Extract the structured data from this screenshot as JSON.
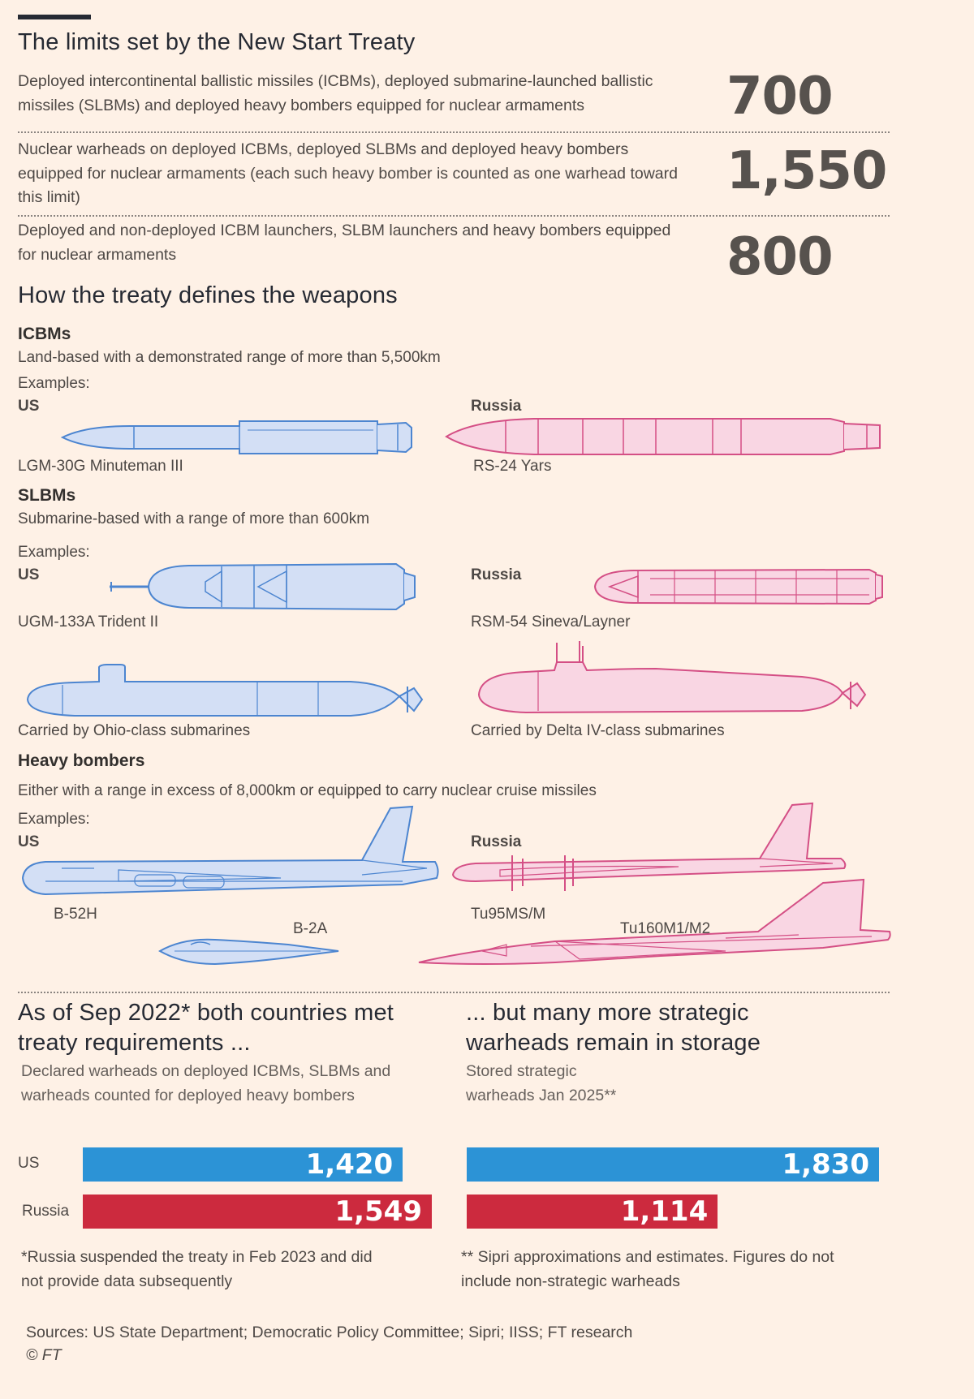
{
  "limits": {
    "title": "The limits set by the New Start Treaty",
    "rows": [
      {
        "text": "Deployed intercontinental ballistic missiles (ICBMs), deployed submarine-launched ballistic missiles (SLBMs) and deployed heavy bombers equipped for nuclear armaments",
        "value": "700"
      },
      {
        "text": "Nuclear warheads on deployed ICBMs, deployed SLBMs and deployed heavy bombers equipped for nuclear armaments (each such heavy bomber is counted as one warhead toward this limit)",
        "value": "1,550"
      },
      {
        "text": "Deployed and non-deployed ICBM launchers, SLBM launchers and heavy bombers equipped for nuclear armaments",
        "value": "800"
      }
    ]
  },
  "defs": {
    "title": "How the treaty defines the weapons",
    "examples_label": "Examples:",
    "us_label": "US",
    "russia_label": "Russia",
    "icbm": {
      "heading": "ICBMs",
      "desc": "Land-based with a demonstrated range of more than 5,500km",
      "us_name": "LGM-30G Minuteman III",
      "ru_name": "RS-24 Yars"
    },
    "slbm": {
      "heading": "SLBMs",
      "desc": "Submarine-based with a range of more than 600km",
      "us_name": "UGM-133A Trident II",
      "ru_name": "RSM-54 Sineva/Layner",
      "us_carrier": "Carried by Ohio-class submarines",
      "ru_carrier": "Carried by Delta IV-class submarines"
    },
    "bomber": {
      "heading": "Heavy bombers",
      "desc": "Either with a range in excess of 8,000km or equipped to carry nuclear cruise missiles",
      "us1": "B-52H",
      "us2": "B-2A",
      "ru1": "Tu95MS/M",
      "ru2": "Tu160M1/M2"
    }
  },
  "colors": {
    "us": "#2c93d6",
    "russia": "#cc2a3e",
    "us_art_fill": "#d3dff5",
    "us_art_stroke": "#4c85d0",
    "ru_art_fill": "#f9d6e3",
    "ru_art_stroke": "#d44f85"
  },
  "icons": {
    "us_icbm": "minuteman-missile-icon",
    "ru_icbm": "yars-missile-icon",
    "us_slbm": "trident-missile-icon",
    "ru_slbm": "sineva-missile-icon",
    "us_sub": "ohio-submarine-icon",
    "ru_sub": "delta-submarine-icon",
    "b52": "b52-bomber-icon",
    "b2": "b2-bomber-icon",
    "tu95": "tu95-bomber-icon",
    "tu160": "tu160-bomber-icon"
  },
  "left_chart": {
    "title": "As of Sep 2022* both countries met treaty requirements ...",
    "subtitle": "Declared warheads on deployed ICBMs, SLBMs and warheads counted for deployed heavy bombers",
    "note": "*Russia suspended the treaty in Feb 2023 and did not provide data subsequently"
  },
  "right_chart": {
    "title": "... but many more strategic warheads remain in storage",
    "subtitle": "Stored strategic warheads Jan 2025**",
    "note": "** Sipri approximations and estimates. Figures do not include non-strategic warheads"
  },
  "chart_data": [
    {
      "type": "bar",
      "title": "As of Sep 2022* both countries met treaty requirements ...",
      "subtitle": "Declared warheads on deployed ICBMs, SLBMs and warheads counted for deployed heavy bombers",
      "categories": [
        "US",
        "Russia"
      ],
      "values": [
        1420,
        1549
      ],
      "labels": [
        "1,420",
        "1,549"
      ],
      "orientation": "horizontal",
      "xlim": [
        0,
        1549
      ]
    },
    {
      "type": "bar",
      "title": "... but many more strategic warheads remain in storage",
      "subtitle": "Stored strategic warheads Jan 2025**",
      "categories": [
        "US",
        "Russia"
      ],
      "values": [
        1830,
        1114
      ],
      "labels": [
        "1,830",
        "1,114"
      ],
      "orientation": "horizontal",
      "xlim": [
        0,
        1830
      ]
    }
  ],
  "footer": {
    "sources": "Sources: US State Department; Democratic Policy Committee; Sipri; IISS; FT research",
    "copyright": "© FT"
  }
}
